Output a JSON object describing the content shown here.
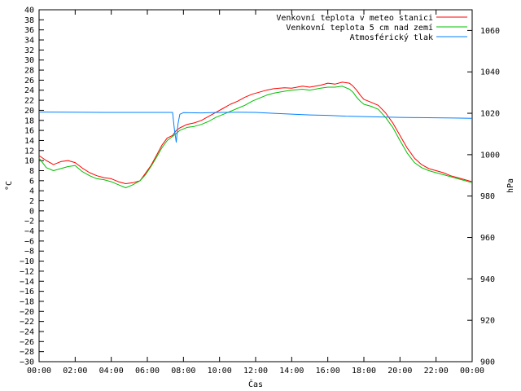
{
  "chart_data": {
    "type": "line",
    "xlabel": "Čas",
    "ylabel": "°C",
    "y2label": "hPa",
    "xlim": [
      0,
      24
    ],
    "ylim": [
      -30,
      40
    ],
    "y2lim": [
      900,
      1070
    ],
    "x_ticks": [
      "00:00",
      "02:00",
      "04:00",
      "06:00",
      "08:00",
      "10:00",
      "12:00",
      "14:00",
      "16:00",
      "18:00",
      "20:00",
      "22:00",
      "00:00"
    ],
    "y_ticks": [
      40,
      38,
      36,
      34,
      32,
      30,
      28,
      26,
      24,
      22,
      20,
      18,
      16,
      14,
      12,
      10,
      8,
      6,
      4,
      2,
      0,
      -2,
      -4,
      -6,
      -8,
      -10,
      -12,
      -14,
      -16,
      -18,
      -20,
      -22,
      -24,
      -26,
      -28,
      -30
    ],
    "y2_ticks": [
      1060,
      1040,
      1020,
      1000,
      980,
      960,
      940,
      920,
      900
    ],
    "legend_position": "top-right",
    "grid": false,
    "series": [
      {
        "name": "Venkovní teplota v meteo stanici",
        "axis": "left",
        "color": "#ff0000",
        "points": [
          [
            0,
            11
          ],
          [
            0.4,
            10
          ],
          [
            0.8,
            9.2
          ],
          [
            1.2,
            9.8
          ],
          [
            1.6,
            10
          ],
          [
            2,
            9.6
          ],
          [
            2.4,
            8.5
          ],
          [
            2.8,
            7.6
          ],
          [
            3.2,
            7
          ],
          [
            3.6,
            6.6
          ],
          [
            4,
            6.4
          ],
          [
            4.4,
            5.8
          ],
          [
            4.8,
            5.4
          ],
          [
            5.2,
            5.6
          ],
          [
            5.6,
            6
          ],
          [
            5.9,
            7.5
          ],
          [
            6.2,
            9
          ],
          [
            6.5,
            11
          ],
          [
            6.8,
            13
          ],
          [
            7.1,
            14.5
          ],
          [
            7.4,
            15
          ],
          [
            7.6,
            16
          ],
          [
            7.8,
            16.5
          ],
          [
            8.2,
            17.2
          ],
          [
            8.6,
            17.5
          ],
          [
            9,
            18
          ],
          [
            9.4,
            18.8
          ],
          [
            9.8,
            19.6
          ],
          [
            10.2,
            20.4
          ],
          [
            10.6,
            21.2
          ],
          [
            11,
            21.8
          ],
          [
            11.4,
            22.6
          ],
          [
            11.8,
            23.2
          ],
          [
            12.2,
            23.6
          ],
          [
            12.6,
            24
          ],
          [
            13,
            24.3
          ],
          [
            13.6,
            24.5
          ],
          [
            14,
            24.4
          ],
          [
            14.6,
            24.8
          ],
          [
            15,
            24.6
          ],
          [
            15.6,
            25
          ],
          [
            16,
            25.4
          ],
          [
            16.4,
            25.2
          ],
          [
            16.8,
            25.6
          ],
          [
            17.2,
            25.4
          ],
          [
            17.4,
            24.8
          ],
          [
            17.6,
            24
          ],
          [
            17.8,
            23
          ],
          [
            18,
            22.2
          ],
          [
            18.4,
            21.6
          ],
          [
            18.8,
            21
          ],
          [
            19.2,
            19.5
          ],
          [
            19.6,
            17.5
          ],
          [
            20,
            15
          ],
          [
            20.4,
            12.5
          ],
          [
            20.8,
            10.5
          ],
          [
            21.2,
            9.2
          ],
          [
            21.6,
            8.4
          ],
          [
            22,
            8
          ],
          [
            22.4,
            7.6
          ],
          [
            22.8,
            7
          ],
          [
            23.2,
            6.6
          ],
          [
            23.6,
            6.2
          ],
          [
            24,
            5.8
          ]
        ]
      },
      {
        "name": "Venkovní teplota 5 cm nad zemí",
        "axis": "left",
        "color": "#00c000",
        "points": [
          [
            0,
            10.5
          ],
          [
            0.4,
            8.6
          ],
          [
            0.8,
            8
          ],
          [
            1.2,
            8.4
          ],
          [
            1.6,
            8.8
          ],
          [
            2,
            9
          ],
          [
            2.4,
            7.8
          ],
          [
            2.8,
            7
          ],
          [
            3.2,
            6.4
          ],
          [
            3.6,
            6.2
          ],
          [
            4,
            5.8
          ],
          [
            4.4,
            5.2
          ],
          [
            4.8,
            4.6
          ],
          [
            5.2,
            5.2
          ],
          [
            5.6,
            6
          ],
          [
            5.9,
            7.2
          ],
          [
            6.2,
            8.8
          ],
          [
            6.5,
            10.6
          ],
          [
            6.8,
            12.5
          ],
          [
            7.1,
            14
          ],
          [
            7.4,
            14.8
          ],
          [
            7.6,
            15.4
          ],
          [
            7.8,
            16
          ],
          [
            8.2,
            16.6
          ],
          [
            8.6,
            16.8
          ],
          [
            9,
            17.2
          ],
          [
            9.4,
            17.8
          ],
          [
            9.8,
            18.6
          ],
          [
            10.2,
            19.2
          ],
          [
            10.6,
            19.8
          ],
          [
            11,
            20.4
          ],
          [
            11.4,
            21
          ],
          [
            11.8,
            21.8
          ],
          [
            12.2,
            22.4
          ],
          [
            12.6,
            23
          ],
          [
            13,
            23.4
          ],
          [
            13.6,
            23.8
          ],
          [
            14,
            24
          ],
          [
            14.6,
            24.2
          ],
          [
            15,
            24
          ],
          [
            15.6,
            24.4
          ],
          [
            16,
            24.6
          ],
          [
            16.4,
            24.6
          ],
          [
            16.8,
            24.8
          ],
          [
            17.2,
            24.2
          ],
          [
            17.4,
            23.6
          ],
          [
            17.6,
            22.6
          ],
          [
            17.8,
            21.8
          ],
          [
            18,
            21.2
          ],
          [
            18.4,
            20.8
          ],
          [
            18.8,
            20.2
          ],
          [
            19.2,
            18.6
          ],
          [
            19.6,
            16.6
          ],
          [
            20,
            14
          ],
          [
            20.4,
            11.5
          ],
          [
            20.8,
            9.6
          ],
          [
            21.2,
            8.6
          ],
          [
            21.6,
            8
          ],
          [
            22,
            7.6
          ],
          [
            22.4,
            7.2
          ],
          [
            22.8,
            6.8
          ],
          [
            23.2,
            6.4
          ],
          [
            23.6,
            6
          ],
          [
            24,
            5.6
          ]
        ]
      },
      {
        "name": "Atmosférický tlak",
        "axis": "right",
        "color": "#0080ff",
        "points": [
          [
            0,
            1020.6
          ],
          [
            2,
            1020.5
          ],
          [
            4,
            1020.4
          ],
          [
            6,
            1020.4
          ],
          [
            7.4,
            1020.4
          ],
          [
            7.5,
            1012
          ],
          [
            7.6,
            1006
          ],
          [
            7.7,
            1015
          ],
          [
            7.8,
            1019.5
          ],
          [
            8,
            1020.3
          ],
          [
            9,
            1020.2
          ],
          [
            10,
            1020.4
          ],
          [
            11,
            1020.5
          ],
          [
            12,
            1020.4
          ],
          [
            13,
            1020.0
          ],
          [
            14,
            1019.6
          ],
          [
            15,
            1019.2
          ],
          [
            16,
            1019
          ],
          [
            17,
            1018.6
          ],
          [
            18,
            1018.4
          ],
          [
            19,
            1018.2
          ],
          [
            20,
            1018
          ],
          [
            21,
            1017.9
          ],
          [
            22,
            1017.8
          ],
          [
            23,
            1017.7
          ],
          [
            24,
            1017.6
          ]
        ]
      }
    ]
  }
}
